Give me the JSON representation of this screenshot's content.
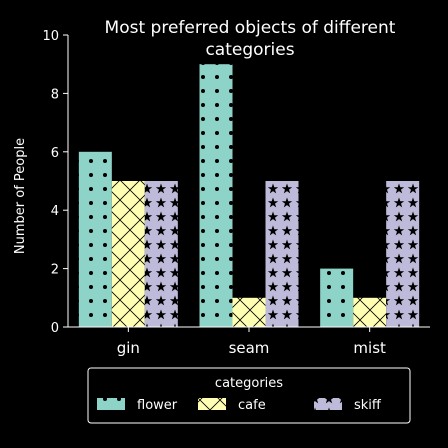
{
  "chart_data": {
    "type": "bar",
    "title": "Most preferred objects of different categories",
    "title_lines": [
      "Most preferred objects of different",
      "categories"
    ],
    "xlabel": "",
    "ylabel": "Number of People",
    "categories": [
      "gin",
      "seam",
      "mist"
    ],
    "ylim": [
      0,
      10
    ],
    "yticks": [
      0,
      2,
      4,
      6,
      8,
      10
    ],
    "grid": false,
    "legend_title": "categories",
    "legend_position": "bottom",
    "series": [
      {
        "name": "flower",
        "values": [
          6,
          9,
          2
        ],
        "color": "#8dd3c7",
        "pattern": "dots"
      },
      {
        "name": "cafe",
        "values": [
          5,
          1,
          1
        ],
        "color": "#ffffb3",
        "pattern": "cross-hatch"
      },
      {
        "name": "skiff",
        "values": [
          5,
          5,
          5
        ],
        "color": "#bebada",
        "pattern": "stars"
      }
    ]
  }
}
